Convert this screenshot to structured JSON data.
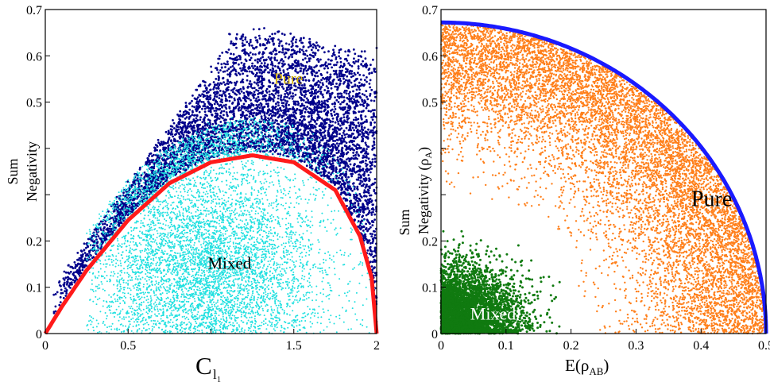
{
  "chart_data": [
    {
      "type": "scatter",
      "panel": "left",
      "xlabel": "C",
      "xlabel_sub": "l",
      "xlabel_subsub": "1",
      "ylabel_line1": "Sum",
      "ylabel_line2": "Negativity",
      "xlim": [
        0,
        2
      ],
      "ylim": [
        0,
        0.7
      ],
      "xticks": [
        0,
        0.5,
        1,
        1.5,
        2
      ],
      "xtick_labels": [
        "0",
        "0.5",
        "",
        "1.5",
        "2"
      ],
      "yticks": [
        0,
        0.1,
        0.2,
        0.3,
        0.4,
        0.5,
        0.6,
        0.7
      ],
      "ytick_labels": [
        "0",
        "0.1",
        "0.2",
        "",
        "",
        "0.5",
        "0.6",
        "0.7"
      ],
      "grid": false,
      "annotations": [
        {
          "text": "Pure",
          "x": 1.38,
          "y": 0.54,
          "color": "#d4b000"
        },
        {
          "text": "Mixed",
          "x": 0.98,
          "y": 0.14,
          "color": "#000000"
        }
      ],
      "series": [
        {
          "role": "pure",
          "color": "#00008b",
          "cloud": "pure_left"
        },
        {
          "role": "mixed",
          "color": "#20e0e0",
          "cloud": "mixed_left"
        },
        {
          "role": "boundary",
          "color": "#ff1a1a",
          "curve": [
            [
              0,
              0
            ],
            [
              0.1,
              0.058
            ],
            [
              0.25,
              0.137
            ],
            [
              0.5,
              0.245
            ],
            [
              0.75,
              0.325
            ],
            [
              1.0,
              0.37
            ],
            [
              1.25,
              0.385
            ],
            [
              1.5,
              0.37
            ],
            [
              1.75,
              0.31
            ],
            [
              1.9,
              0.21
            ],
            [
              1.97,
              0.12
            ],
            [
              2.0,
              0
            ]
          ]
        }
      ]
    },
    {
      "type": "scatter",
      "panel": "right",
      "xlabel": "E(ρ",
      "xlabel_sub": "AB",
      "xlabel_close": ")",
      "ylabel_line1": "Sum",
      "ylabel_line2": "Negativity (ρ",
      "ylabel_sub": "A",
      "ylabel_close": ")",
      "xlim": [
        0,
        0.5
      ],
      "ylim": [
        0,
        0.7
      ],
      "xticks": [
        0,
        0.1,
        0.2,
        0.3,
        0.4,
        0.5
      ],
      "xtick_labels": [
        "0",
        "0.1",
        "0.2",
        "0.3",
        "0.4",
        "0.5"
      ],
      "yticks": [
        0,
        0.1,
        0.2,
        0.3,
        0.4,
        0.5,
        0.6,
        0.7
      ],
      "ytick_labels": [
        "0",
        "0.1",
        "0.2",
        "",
        "",
        "0.5",
        "0.6",
        "0.7"
      ],
      "grid": false,
      "annotations": [
        {
          "text": "Pure",
          "x": 0.385,
          "y": 0.275,
          "color": "#000000"
        },
        {
          "text": "Mixed",
          "x": 0.045,
          "y": 0.03,
          "color": "#ffffff"
        }
      ],
      "series": [
        {
          "role": "pure",
          "color": "#ff7f1a",
          "cloud": "pure_right"
        },
        {
          "role": "mixed",
          "color": "#107a10",
          "cloud": "mixed_right"
        },
        {
          "role": "boundary",
          "color": "#1a1aff",
          "curve": "quarter-ellipse x^2/0.5^2 + y^2/0.672^2 = 1"
        }
      ]
    }
  ]
}
